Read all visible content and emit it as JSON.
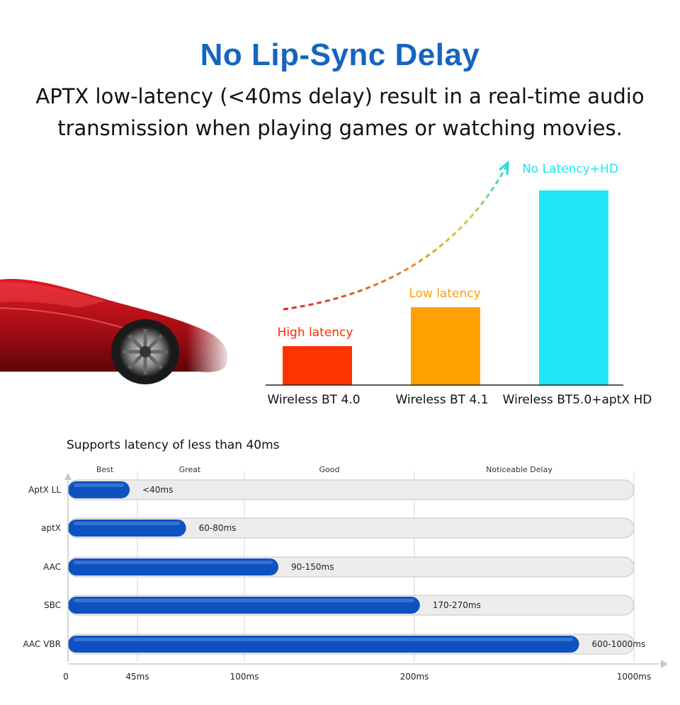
{
  "header": {
    "title": "No Lip-Sync Delay",
    "subtitle": "APTX low-latency (<40ms delay) result in a real-time audio transmission when playing games or watching movies."
  },
  "colors": {
    "title": "#1565c0",
    "bar_high": "#ff3300",
    "bar_low": "#ffa000",
    "bar_hd": "#22e6f5",
    "label_high": "#ff2a00",
    "label_low": "#ffa000",
    "label_hd": "#1ee4f0",
    "latency_bar": "#0d52c0",
    "track": "#ececec"
  },
  "chart_data": [
    {
      "type": "bar",
      "categories": [
        "Wireless BT 4.0",
        "Wireless BT 4.1",
        "Wireless BT5.0+aptX HD"
      ],
      "series": [
        {
          "values": [
            1,
            2,
            5
          ]
        }
      ],
      "annotations": [
        "High latency",
        "Low latency",
        "No Latency+HD"
      ],
      "ylim": [
        0,
        5.2
      ],
      "trend_arrow": true
    },
    {
      "type": "bar",
      "orientation": "horizontal",
      "title": "Supports latency of less than 40ms",
      "categories": [
        "AptX LL",
        "aptX",
        "AAC",
        "SBC",
        "AAC VBR"
      ],
      "values": [
        40,
        70,
        120,
        220,
        800
      ],
      "value_labels": [
        "<40ms",
        "60-80ms",
        "90-150ms",
        "170-270ms",
        "600-1000ms"
      ],
      "zones": [
        "Best",
        "Great",
        "Good",
        "Noticeable Delay"
      ],
      "x_ticks": [
        "0",
        "45ms",
        "100ms",
        "200ms",
        "1000ms"
      ],
      "x_tick_values": [
        0,
        45,
        100,
        200,
        1000
      ],
      "xlim": [
        0,
        1000
      ]
    }
  ]
}
